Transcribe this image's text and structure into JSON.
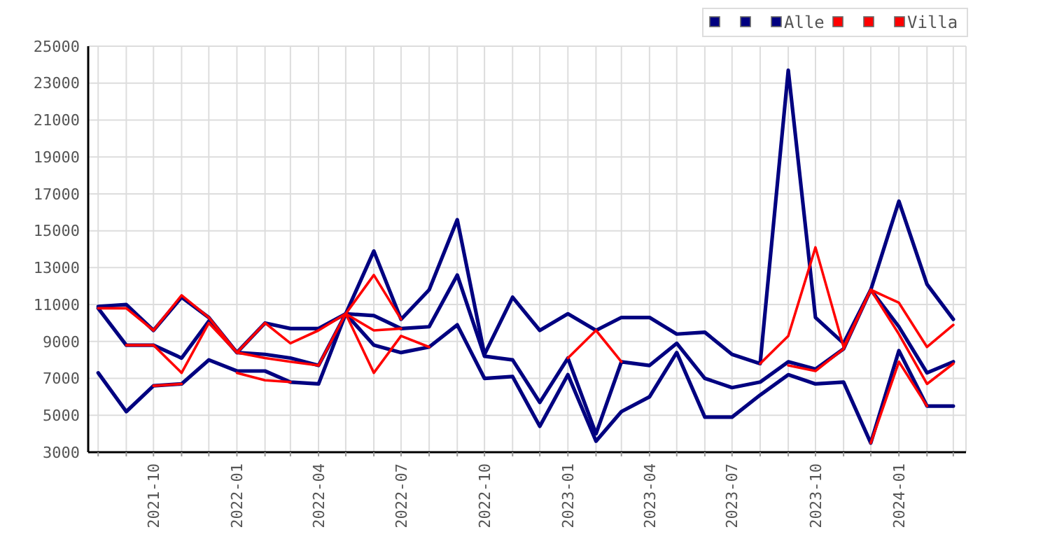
{
  "chart_data": {
    "type": "line",
    "x": [
      "2021-08",
      "2021-09",
      "2021-10",
      "2021-11",
      "2021-12",
      "2022-01",
      "2022-02",
      "2022-03",
      "2022-04",
      "2022-05",
      "2022-06",
      "2022-07",
      "2022-08",
      "2022-09",
      "2022-10",
      "2022-11",
      "2022-12",
      "2023-01",
      "2023-02",
      "2023-03",
      "2023-04",
      "2023-05",
      "2023-06",
      "2023-07",
      "2023-08",
      "2023-09",
      "2023-10",
      "2023-11",
      "2023-12",
      "2024-01",
      "2024-02",
      "2024-03"
    ],
    "xlim": [
      "2021-07-21",
      "2024-03-15"
    ],
    "xticks": [
      {
        "value": "2021-08",
        "label": null
      },
      {
        "value": "2021-09",
        "label": null
      },
      {
        "value": "2021-10",
        "label": "2021-10"
      },
      {
        "value": "2021-11",
        "label": null
      },
      {
        "value": "2021-12",
        "label": null
      },
      {
        "value": "2022-01",
        "label": "2022-01"
      },
      {
        "value": "2022-02",
        "label": null
      },
      {
        "value": "2022-03",
        "label": null
      },
      {
        "value": "2022-04",
        "label": "2022-04"
      },
      {
        "value": "2022-05",
        "label": null
      },
      {
        "value": "2022-06",
        "label": null
      },
      {
        "value": "2022-07",
        "label": "2022-07"
      },
      {
        "value": "2022-08",
        "label": null
      },
      {
        "value": "2022-09",
        "label": null
      },
      {
        "value": "2022-10",
        "label": "2022-10"
      },
      {
        "value": "2022-11",
        "label": null
      },
      {
        "value": "2022-12",
        "label": null
      },
      {
        "value": "2023-01",
        "label": "2023-01"
      },
      {
        "value": "2023-02",
        "label": null
      },
      {
        "value": "2023-03",
        "label": null
      },
      {
        "value": "2023-04",
        "label": "2023-04"
      },
      {
        "value": "2023-05",
        "label": null
      },
      {
        "value": "2023-06",
        "label": null
      },
      {
        "value": "2023-07",
        "label": "2023-07"
      },
      {
        "value": "2023-08",
        "label": null
      },
      {
        "value": "2023-09",
        "label": null
      },
      {
        "value": "2023-10",
        "label": "2023-10"
      },
      {
        "value": "2023-11",
        "label": null
      },
      {
        "value": "2023-12",
        "label": null
      },
      {
        "value": "2024-01",
        "label": "2024-01"
      },
      {
        "value": "2024-02",
        "label": null
      },
      {
        "value": "2024-03",
        "label": null
      }
    ],
    "ylim": [
      3000,
      25000
    ],
    "yticks": [
      3000,
      5000,
      7000,
      9000,
      11000,
      13000,
      15000,
      17000,
      19000,
      21000,
      23000,
      25000
    ],
    "grid": true,
    "legend": "top right",
    "marker": "none",
    "line_style": "solid",
    "series": [
      {
        "color": "#000080",
        "values": [
          10900,
          11000,
          9600,
          11400,
          10300,
          8400,
          10000,
          9700,
          9700,
          10500,
          13900,
          10200,
          11800,
          15600,
          8300,
          11400,
          9600,
          10500,
          9600,
          10300,
          10300,
          9400,
          9500,
          8300,
          7800,
          23700,
          10300,
          8900,
          11800,
          16600,
          12100,
          10200
        ]
      },
      {
        "color": "#000080",
        "values": [
          10800,
          8800,
          8800,
          8100,
          10100,
          8400,
          8300,
          8100,
          7700,
          10500,
          10400,
          9700,
          9800,
          12600,
          8200,
          8000,
          5700,
          8100,
          4000,
          7900,
          7700,
          8900,
          7000,
          6500,
          6800,
          7900,
          7500,
          8600,
          11800,
          9800,
          7300,
          7900
        ]
      },
      {
        "name": "Alle",
        "color": "#000080",
        "values": [
          7300,
          5200,
          6600,
          6700,
          8000,
          7400,
          7400,
          6800,
          6700,
          10500,
          8800,
          8400,
          8700,
          9900,
          7000,
          7100,
          4400,
          7200,
          3600,
          5200,
          6000,
          8400,
          4900,
          4900,
          6100,
          7200,
          6700,
          6800,
          3500,
          8500,
          5500,
          5500
        ]
      },
      {
        "color": "#ff0000",
        "values": [
          10800,
          10800,
          9600,
          11500,
          10300,
          8400,
          10000,
          8900,
          9600,
          10500,
          12600,
          10200,
          null,
          null,
          null,
          null,
          null,
          null,
          null,
          null,
          null,
          null,
          null,
          null,
          7800,
          9300,
          14100,
          8700,
          11800,
          11100,
          8700,
          9900
        ]
      },
      {
        "color": "#ff0000",
        "values": [
          null,
          8800,
          8800,
          7300,
          10000,
          8400,
          8100,
          7900,
          7700,
          10500,
          7300,
          9300,
          8700,
          null,
          null,
          null,
          null,
          8100,
          9600,
          7900,
          null,
          null,
          null,
          null,
          null,
          7700,
          7400,
          8600,
          11800,
          9400,
          6700,
          7800
        ]
      },
      {
        "name": "Villa",
        "color": "#ff0000",
        "values": [
          null,
          null,
          6600,
          6700,
          null,
          7300,
          6900,
          6800,
          null,
          10500,
          9600,
          9700,
          null,
          null,
          null,
          null,
          null,
          null,
          null,
          null,
          null,
          null,
          null,
          null,
          null,
          null,
          null,
          null,
          3500,
          7900,
          5500,
          null
        ]
      }
    ]
  }
}
